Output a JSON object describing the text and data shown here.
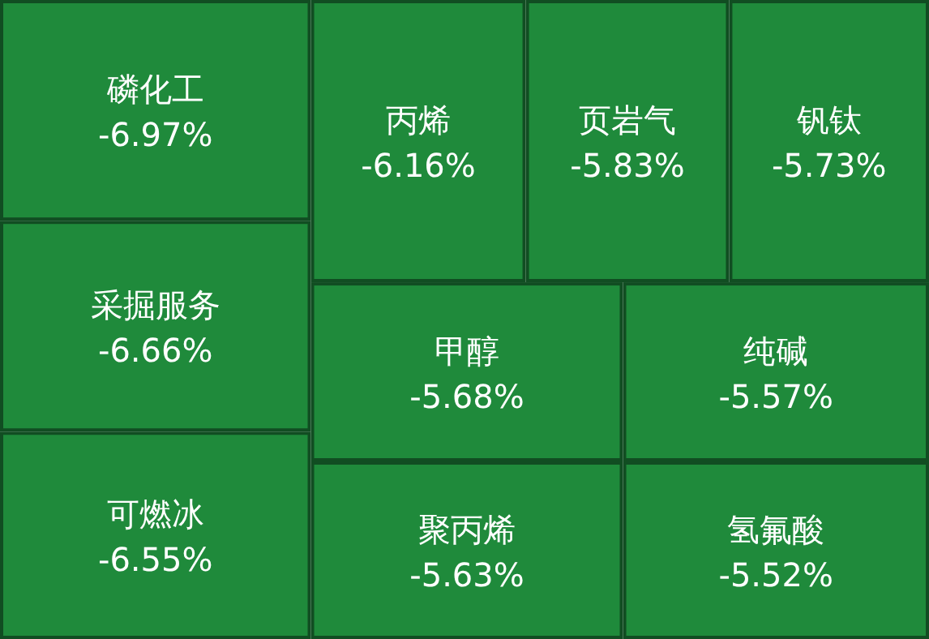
{
  "chart_data": {
    "type": "other",
    "categories": [
      "磷化工",
      "采掘服务",
      "可燃冰",
      "丙烯",
      "页岩气",
      "钒钛",
      "甲醇",
      "纯碱",
      "聚丙烯",
      "氢氟酸"
    ],
    "values": [
      -6.97,
      -6.66,
      -6.55,
      -6.16,
      -5.83,
      -5.73,
      -5.68,
      -5.57,
      -5.63,
      -5.52
    ],
    "value_labels": [
      "-6.97%",
      "-6.66%",
      "-6.55%",
      "-6.16%",
      "-5.83%",
      "-5.73%",
      "-5.68%",
      "-5.57%",
      "-5.63%",
      "-5.52%"
    ],
    "color": "#1f8a3b"
  }
}
